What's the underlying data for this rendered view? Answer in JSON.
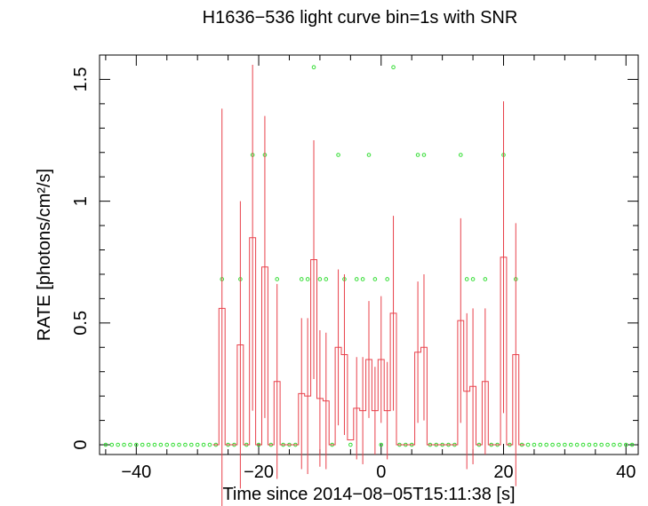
{
  "chart_data": {
    "type": "line",
    "title": "H1636−536 light curve bin=1s with SNR",
    "xlabel": "Time since 2014−08−05T15:11:38 [s]",
    "ylabel": "RATE [photons/cm²/s]",
    "xlim": [
      -46,
      42
    ],
    "ylim": [
      -0.04,
      1.6
    ],
    "x_ticks": [
      -40,
      -20,
      0,
      20,
      40
    ],
    "x_tick_labels": [
      "−40",
      "−20",
      "0",
      "20",
      "40"
    ],
    "y_ticks": [
      0,
      0.5,
      1,
      1.5
    ],
    "y_tick_labels": [
      "0",
      "0.5",
      "1",
      "1.5"
    ],
    "grid": false,
    "colors": {
      "rate": "#e8404a",
      "snr": "#33dd33",
      "axes": "#000000"
    },
    "series": [
      {
        "style": "step-with-error-bars",
        "bins": [
          {
            "x": -27,
            "y": 0,
            "err": 0
          },
          {
            "x": -26,
            "y": 0.56,
            "err": 0.82
          },
          {
            "x": -25,
            "y": 0,
            "err": 0
          },
          {
            "x": -24,
            "y": 0,
            "err": 0
          },
          {
            "x": -23,
            "y": 0.41,
            "err": 0.59
          },
          {
            "x": -22,
            "y": 0,
            "err": 0
          },
          {
            "x": -21,
            "y": 0.85,
            "err": 0.71
          },
          {
            "x": -20,
            "y": 0,
            "err": 0
          },
          {
            "x": -19,
            "y": 0.73,
            "err": 0.62
          },
          {
            "x": -18,
            "y": 0,
            "err": 0
          },
          {
            "x": -17,
            "y": 0.26,
            "err": 0.4
          },
          {
            "x": -16,
            "y": 0,
            "err": 0
          },
          {
            "x": -15,
            "y": 0,
            "err": 0
          },
          {
            "x": -14,
            "y": 0,
            "err": 0
          },
          {
            "x": -13,
            "y": 0.21,
            "err": 0.31
          },
          {
            "x": -12,
            "y": 0.2,
            "err": 0.32
          },
          {
            "x": -11,
            "y": 0.76,
            "err": 0.49
          },
          {
            "x": -10,
            "y": 0.19,
            "err": 0.28
          },
          {
            "x": -9,
            "y": 0.18,
            "err": 0.28
          },
          {
            "x": -8,
            "y": 0,
            "err": 0
          },
          {
            "x": -7,
            "y": 0.4,
            "err": 0.32
          },
          {
            "x": -6,
            "y": 0.37,
            "err": 0.33
          },
          {
            "x": -5,
            "y": 0.02,
            "err": 0
          },
          {
            "x": -4,
            "y": 0.15,
            "err": 0.21
          },
          {
            "x": -3,
            "y": 0.14,
            "err": 0.22
          },
          {
            "x": -2,
            "y": 0.35,
            "err": 0.24
          },
          {
            "x": -1,
            "y": 0.14,
            "err": 0.18
          },
          {
            "x": 0,
            "y": 0.35,
            "err": 0.26
          },
          {
            "x": 1,
            "y": 0.14,
            "err": 0.2
          },
          {
            "x": 2,
            "y": 0.54,
            "err": 0.4
          },
          {
            "x": 3,
            "y": 0,
            "err": 0
          },
          {
            "x": 4,
            "y": 0,
            "err": 0
          },
          {
            "x": 5,
            "y": 0,
            "err": 0
          },
          {
            "x": 6,
            "y": 0.38,
            "err": 0.29
          },
          {
            "x": 7,
            "y": 0.4,
            "err": 0.3
          },
          {
            "x": 8,
            "y": 0,
            "err": 0
          },
          {
            "x": 9,
            "y": 0,
            "err": 0
          },
          {
            "x": 10,
            "y": 0,
            "err": 0
          },
          {
            "x": 11,
            "y": 0,
            "err": 0
          },
          {
            "x": 12,
            "y": 0,
            "err": 0
          },
          {
            "x": 13,
            "y": 0.51,
            "err": 0.42
          },
          {
            "x": 14,
            "y": 0.22,
            "err": 0.32
          },
          {
            "x": 15,
            "y": 0.24,
            "err": 0.32
          },
          {
            "x": 16,
            "y": 0,
            "err": 0
          },
          {
            "x": 17,
            "y": 0.26,
            "err": 0.3
          },
          {
            "x": 18,
            "y": 0,
            "err": 0
          },
          {
            "x": 19,
            "y": 0,
            "err": 0
          },
          {
            "x": 20,
            "y": 0.77,
            "err": 0.64
          },
          {
            "x": 21,
            "y": 0,
            "err": 0
          },
          {
            "x": 22,
            "y": 0.37,
            "err": 0.54
          },
          {
            "x": 23,
            "y": 0,
            "err": 0
          }
        ]
      },
      {
        "style": "points",
        "points": [
          {
            "x": -45,
            "y": 0
          },
          {
            "x": -44,
            "y": 0
          },
          {
            "x": -43,
            "y": 0
          },
          {
            "x": -42,
            "y": 0
          },
          {
            "x": -41,
            "y": 0
          },
          {
            "x": -40,
            "y": 0
          },
          {
            "x": -39,
            "y": 0
          },
          {
            "x": -38,
            "y": 0
          },
          {
            "x": -37,
            "y": 0
          },
          {
            "x": -36,
            "y": 0
          },
          {
            "x": -35,
            "y": 0
          },
          {
            "x": -34,
            "y": 0
          },
          {
            "x": -33,
            "y": 0
          },
          {
            "x": -32,
            "y": 0
          },
          {
            "x": -31,
            "y": 0
          },
          {
            "x": -30,
            "y": 0
          },
          {
            "x": -29,
            "y": 0
          },
          {
            "x": -28,
            "y": 0
          },
          {
            "x": -27,
            "y": 0
          },
          {
            "x": -26,
            "y": 0.68
          },
          {
            "x": -25,
            "y": 0
          },
          {
            "x": -24,
            "y": 0
          },
          {
            "x": -23,
            "y": 0.68
          },
          {
            "x": -22,
            "y": 0
          },
          {
            "x": -21,
            "y": 1.19
          },
          {
            "x": -20,
            "y": 0
          },
          {
            "x": -19,
            "y": 1.19
          },
          {
            "x": -18,
            "y": 0
          },
          {
            "x": -17,
            "y": 0.68
          },
          {
            "x": -16,
            "y": 0
          },
          {
            "x": -15,
            "y": 0
          },
          {
            "x": -14,
            "y": 0
          },
          {
            "x": -13,
            "y": 0.68
          },
          {
            "x": -12,
            "y": 0.68
          },
          {
            "x": -11,
            "y": 1.55
          },
          {
            "x": -10,
            "y": 0.68
          },
          {
            "x": -9,
            "y": 0.68
          },
          {
            "x": -8,
            "y": 0
          },
          {
            "x": -7,
            "y": 1.19
          },
          {
            "x": -6,
            "y": 0.68
          },
          {
            "x": -5,
            "y": 0
          },
          {
            "x": -4,
            "y": 0.68
          },
          {
            "x": -3,
            "y": 0.68
          },
          {
            "x": -2,
            "y": 1.19
          },
          {
            "x": -1,
            "y": 0.68
          },
          {
            "x": 0,
            "y": 0
          },
          {
            "x": 1,
            "y": 0.68
          },
          {
            "x": 2,
            "y": 1.55
          },
          {
            "x": 3,
            "y": 0
          },
          {
            "x": 4,
            "y": 0
          },
          {
            "x": 5,
            "y": 0
          },
          {
            "x": 6,
            "y": 1.19
          },
          {
            "x": 7,
            "y": 1.19
          },
          {
            "x": 8,
            "y": 0
          },
          {
            "x": 9,
            "y": 0
          },
          {
            "x": 10,
            "y": 0
          },
          {
            "x": 11,
            "y": 0
          },
          {
            "x": 12,
            "y": 0
          },
          {
            "x": 13,
            "y": 1.19
          },
          {
            "x": 14,
            "y": 0.68
          },
          {
            "x": 15,
            "y": 0.68
          },
          {
            "x": 16,
            "y": 0
          },
          {
            "x": 17,
            "y": 0.68
          },
          {
            "x": 18,
            "y": 0
          },
          {
            "x": 19,
            "y": 0
          },
          {
            "x": 20,
            "y": 1.19
          },
          {
            "x": 21,
            "y": 0
          },
          {
            "x": 22,
            "y": 0.68
          },
          {
            "x": 23,
            "y": 0
          },
          {
            "x": 24,
            "y": 0
          },
          {
            "x": 25,
            "y": 0
          },
          {
            "x": 26,
            "y": 0
          },
          {
            "x": 27,
            "y": 0
          },
          {
            "x": 28,
            "y": 0
          },
          {
            "x": 29,
            "y": 0
          },
          {
            "x": 30,
            "y": 0
          },
          {
            "x": 31,
            "y": 0
          },
          {
            "x": 32,
            "y": 0
          },
          {
            "x": 33,
            "y": 0
          },
          {
            "x": 34,
            "y": 0
          },
          {
            "x": 35,
            "y": 0
          },
          {
            "x": 36,
            "y": 0
          },
          {
            "x": 37,
            "y": 0
          },
          {
            "x": 38,
            "y": 0
          },
          {
            "x": 39,
            "y": 0
          },
          {
            "x": 40,
            "y": 0
          },
          {
            "x": 41,
            "y": 0
          }
        ]
      }
    ]
  }
}
